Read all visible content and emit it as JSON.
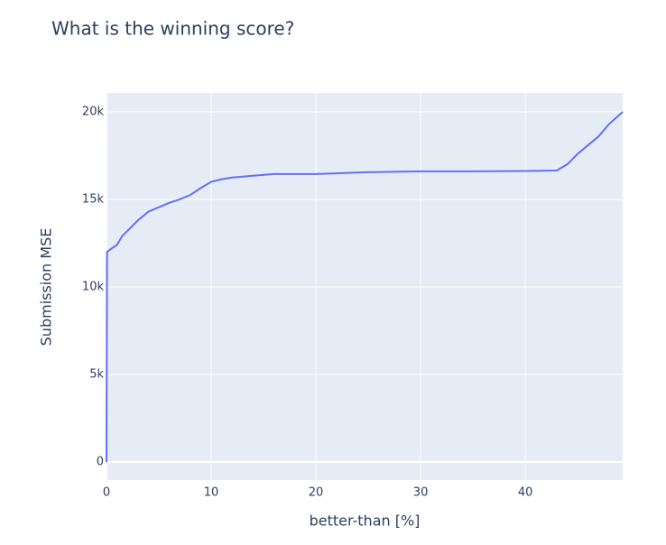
{
  "chart_data": {
    "type": "line",
    "title": "What is the winning score?",
    "x_label": "better-than [%]",
    "y_label": "Submission MSE",
    "series": [
      {
        "color": "#636efa",
        "x": [
          0,
          0.05,
          0.5,
          1,
          1.5,
          2,
          3,
          4,
          5,
          6,
          7,
          8,
          9,
          10,
          11,
          12,
          14,
          16,
          20,
          25,
          30,
          35,
          40,
          43,
          44,
          45,
          46,
          47,
          48,
          49.3
        ],
        "values": [
          0,
          12000,
          12200,
          12400,
          12900,
          13200,
          13800,
          14300,
          14550,
          14800,
          15000,
          15250,
          15650,
          16000,
          16150,
          16250,
          16350,
          16450,
          16450,
          16550,
          16600,
          16600,
          16620,
          16650,
          17000,
          17600,
          18100,
          18600,
          19300,
          20000
        ]
      }
    ],
    "xlim": [
      0,
      49.3
    ],
    "ylim": [
      -1030,
      21080
    ],
    "xticks": [
      0,
      10,
      20,
      30,
      40
    ],
    "yticks": [
      0,
      {
        "value": 5000,
        "label": "5k"
      },
      {
        "value": 10000,
        "label": "10k"
      },
      {
        "value": 15000,
        "label": "15k"
      },
      {
        "value": 20000,
        "label": "20k"
      }
    ],
    "grid": true,
    "background": "#e5ecf6"
  }
}
